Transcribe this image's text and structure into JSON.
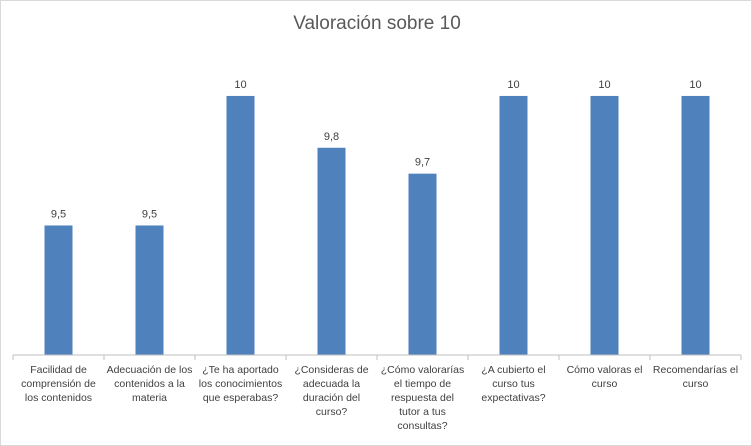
{
  "chart_data": {
    "type": "bar",
    "title": "Valoración sobre 10",
    "xlabel": "",
    "ylabel": "",
    "categories": [
      "Facilidad de comprensión de los contenidos",
      "Adecuación de los contenidos a la materia",
      "¿Te ha aportado los conocimientos que esperabas?",
      "¿Consideras de adecuada la duración del curso?",
      "¿Cómo valorarías el tiempo de respuesta del tutor a tus consultas?",
      "¿A cubierto el curso tus expectativas?",
      "Cómo valoras el curso",
      "Recomendarías el curso"
    ],
    "values": [
      9.5,
      9.5,
      10,
      9.8,
      9.7,
      10,
      10,
      10
    ],
    "data_labels": [
      "9,5",
      "9,5",
      "10",
      "9,8",
      "9,7",
      "10",
      "10",
      "10"
    ],
    "ylim": [
      9,
      10.05
    ],
    "grid": false,
    "legend": "none",
    "bar_color": "#4f81bd"
  }
}
